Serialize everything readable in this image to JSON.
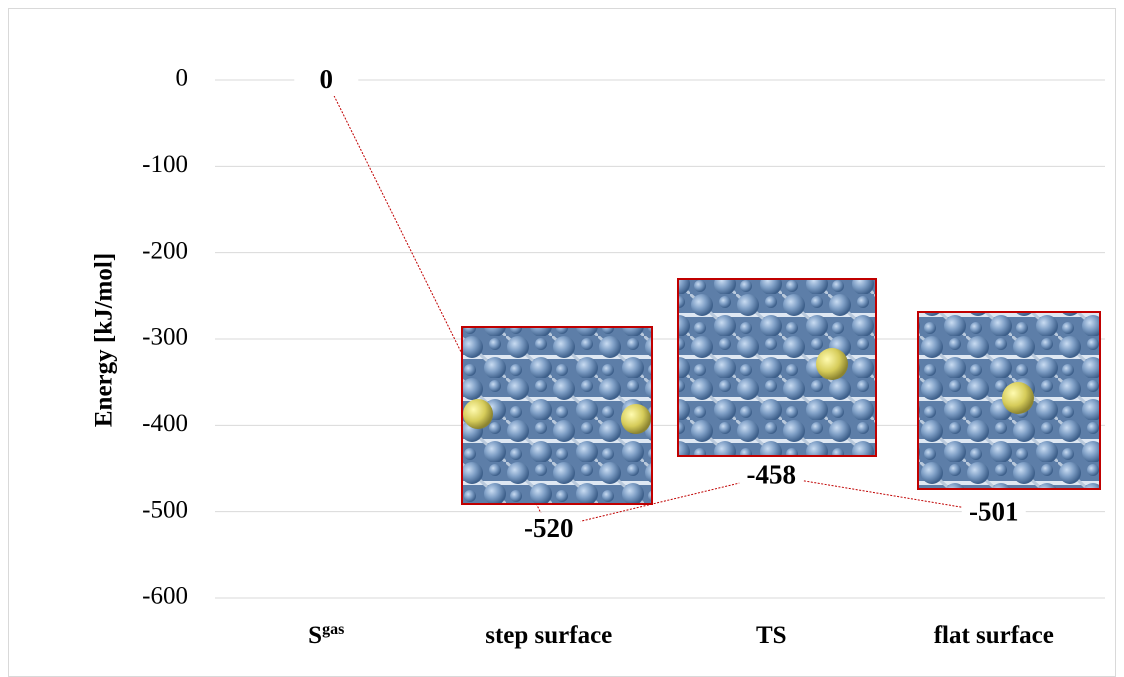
{
  "chart_data": {
    "type": "line",
    "y_label": "Energy [kJ/mol]",
    "categories": [
      "S",
      "step surface",
      "TS",
      "flat surface"
    ],
    "category_superscripts": [
      "gas",
      null,
      null,
      null
    ],
    "series": [
      {
        "color": "#c00000",
        "values": [
          0,
          -520,
          -458,
          -501
        ]
      }
    ],
    "ylim": [
      -600,
      0
    ],
    "yticks": [
      -600,
      -500,
      -400,
      -300,
      -200,
      -100,
      0
    ],
    "grid": true
  }
}
